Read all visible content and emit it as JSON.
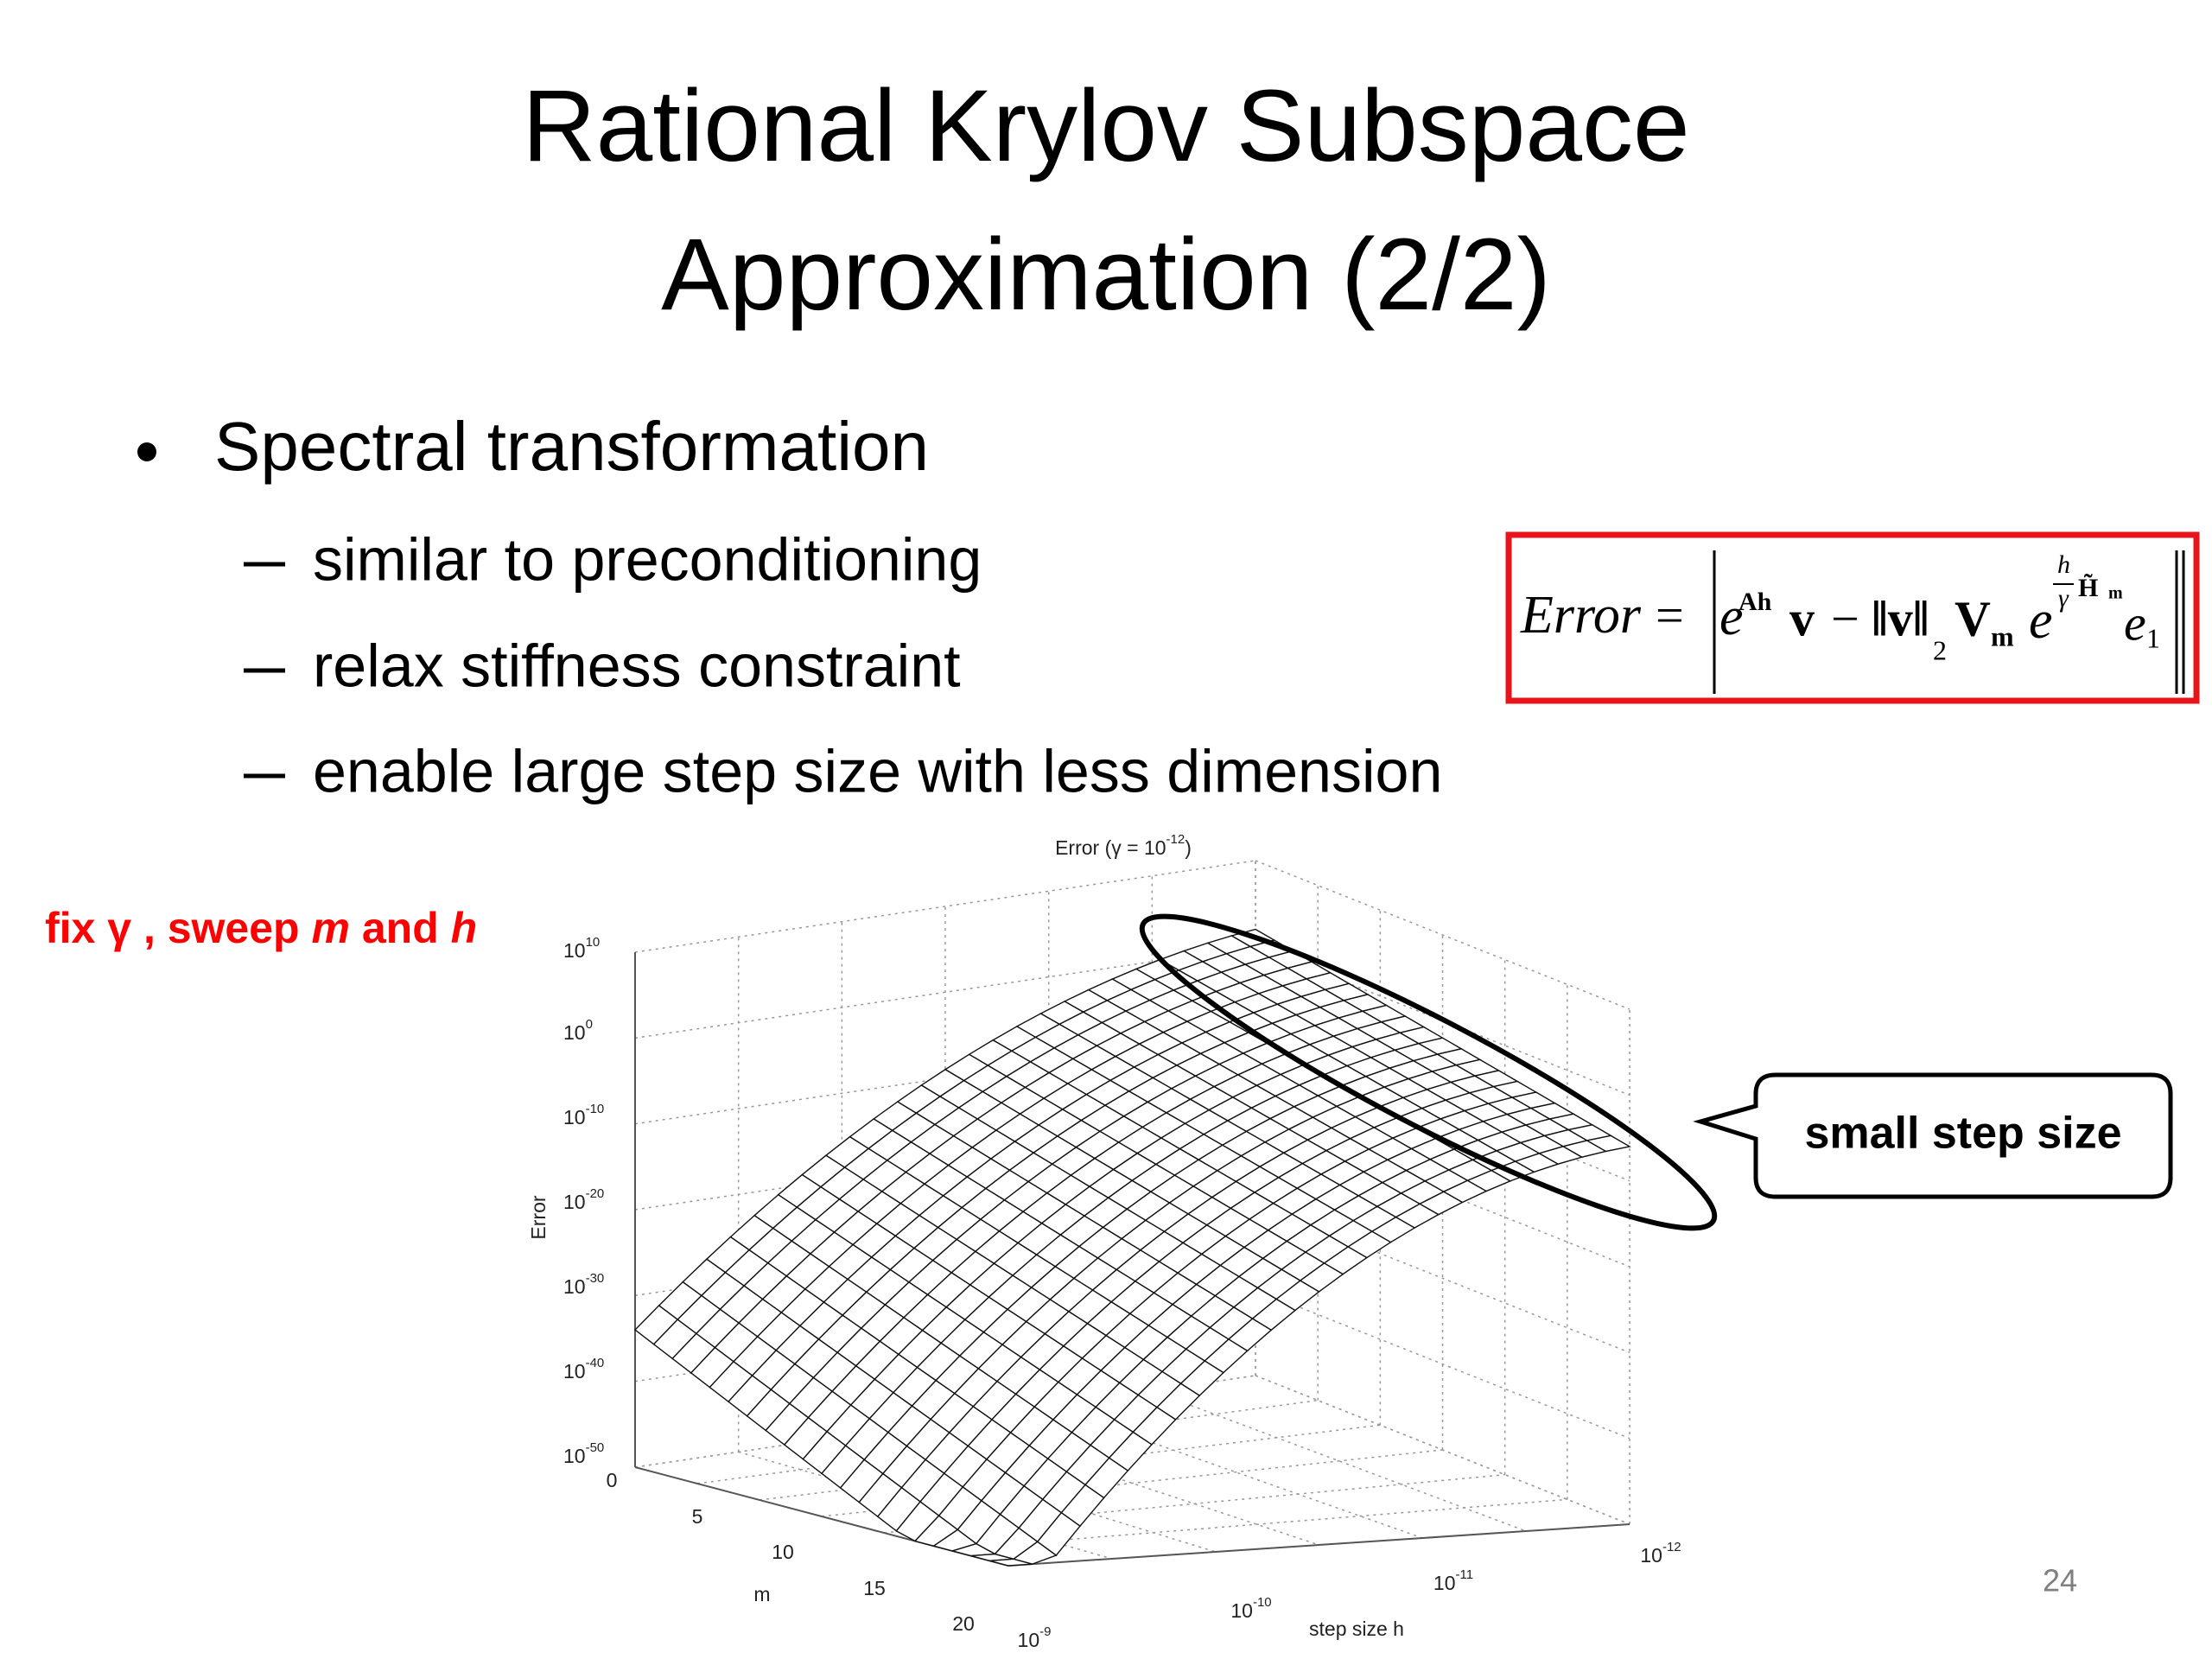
{
  "title": [
    "Rational Krylov Subspace",
    "Approximation (2/2)"
  ],
  "bullet": "Spectral transformation",
  "sub_bullets": [
    "similar to preconditioning",
    "relax stiffness constraint",
    "enable large step size with less dimension"
  ],
  "formula": [
    {
      "t": "Error",
      "s": "i"
    },
    {
      "t": "=",
      "s": "n"
    },
    {
      "t": "e",
      "s": "i"
    },
    {
      "t": "Ah",
      "s": "b"
    },
    {
      "t": "v",
      "s": "b"
    },
    {
      "t": "−",
      "s": "n"
    },
    {
      "t": "‖v‖",
      "s": "b"
    },
    {
      "t": "2",
      "s": "n"
    },
    {
      "t": "V",
      "s": "b"
    },
    {
      "t": "m",
      "s": "b"
    },
    {
      "t": "e",
      "s": "i"
    },
    {
      "t": "h",
      "s": "i"
    },
    {
      "t": "γ",
      "s": "i"
    },
    {
      "t": "H̃",
      "s": "b"
    },
    {
      "t": "m",
      "s": "b"
    },
    {
      "t": "e",
      "s": "i"
    },
    {
      "t": "1",
      "s": "n"
    }
  ],
  "annotation": [
    {
      "text": "fix γ , sweep ",
      "italic": false
    },
    {
      "text": "m",
      "italic": true
    },
    {
      "text": " and ",
      "italic": false
    },
    {
      "text": "h",
      "italic": true
    }
  ],
  "figure": {
    "title": {
      "text": "Error (γ = ",
      "base": "10",
      "exp": "-12",
      "close": ")"
    },
    "zlabel": "Error",
    "xlabel": "step size h",
    "ylabel": "m",
    "zticks": [
      {
        "base": "10",
        "exp": "10"
      },
      {
        "base": "10",
        "exp": "0"
      },
      {
        "base": "10",
        "exp": "-10"
      },
      {
        "base": "10",
        "exp": "-20"
      },
      {
        "base": "10",
        "exp": "-30"
      },
      {
        "base": "10",
        "exp": "-40"
      },
      {
        "base": "10",
        "exp": "-50"
      }
    ],
    "mticks": [
      "0",
      "5",
      "10",
      "15",
      "20"
    ],
    "hticks": [
      {
        "base": "10",
        "exp": "-9"
      },
      {
        "base": "10",
        "exp": "-10"
      },
      {
        "base": "10",
        "exp": "-11"
      },
      {
        "base": "10",
        "exp": "-12"
      }
    ]
  },
  "callout": "small step size",
  "page_number": "24"
}
